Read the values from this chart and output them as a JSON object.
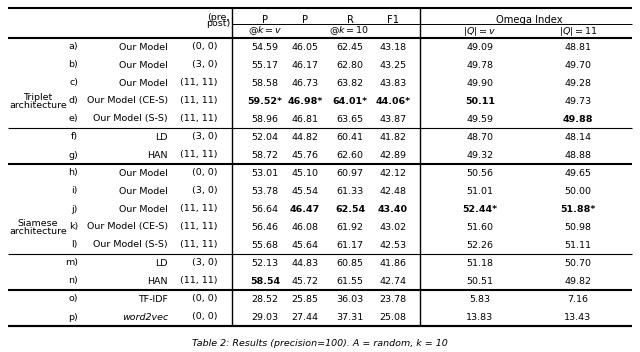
{
  "sections": [
    {
      "group_label": "Triplet\narchitecture",
      "rows": [
        {
          "id": "a)",
          "model": "Our Model",
          "pre_post": "(0, 0)",
          "p_v": "54.59",
          "p_10": "46.05",
          "r_10": "62.45",
          "f1_10": "43.18",
          "omega_v": "49.09",
          "omega_11": "48.81",
          "bold": [],
          "separator_before": false
        },
        {
          "id": "b)",
          "model": "Our Model",
          "pre_post": "(3, 0)",
          "p_v": "55.17",
          "p_10": "46.17",
          "r_10": "62.80",
          "f1_10": "43.25",
          "omega_v": "49.78",
          "omega_11": "49.70",
          "bold": [],
          "separator_before": false
        },
        {
          "id": "c)",
          "model": "Our Model",
          "pre_post": "(11, 11)",
          "p_v": "58.58",
          "p_10": "46.73",
          "r_10": "63.82",
          "f1_10": "43.83",
          "omega_v": "49.90",
          "omega_11": "49.28",
          "bold": [],
          "separator_before": false
        },
        {
          "id": "d)",
          "model": "Our Model (CE-S)",
          "pre_post": "(11, 11)",
          "p_v": "59.52*",
          "p_10": "46.98*",
          "r_10": "64.01*",
          "f1_10": "44.06*",
          "omega_v": "50.11",
          "omega_11": "49.73",
          "bold": [
            "p_v",
            "p_10",
            "r_10",
            "f1_10",
            "omega_v"
          ],
          "separator_before": false
        },
        {
          "id": "e)",
          "model": "Our Model (S-S)",
          "pre_post": "(11, 11)",
          "p_v": "58.96",
          "p_10": "46.81",
          "r_10": "63.65",
          "f1_10": "43.87",
          "omega_v": "49.59",
          "omega_11": "49.88",
          "bold": [
            "omega_11"
          ],
          "separator_before": false
        },
        {
          "id": "f)",
          "model": "LD",
          "pre_post": "(3, 0)",
          "p_v": "52.04",
          "p_10": "44.82",
          "r_10": "60.41",
          "f1_10": "41.82",
          "omega_v": "48.70",
          "omega_11": "48.14",
          "bold": [],
          "separator_before": true
        },
        {
          "id": "g)",
          "model": "HAN",
          "pre_post": "(11, 11)",
          "p_v": "58.72",
          "p_10": "45.76",
          "r_10": "62.60",
          "f1_10": "42.89",
          "omega_v": "49.32",
          "omega_11": "48.88",
          "bold": [],
          "separator_before": false
        }
      ]
    },
    {
      "group_label": "Siamese\narchitecture",
      "rows": [
        {
          "id": "h)",
          "model": "Our Model",
          "pre_post": "(0, 0)",
          "p_v": "53.01",
          "p_10": "45.10",
          "r_10": "60.97",
          "f1_10": "42.12",
          "omega_v": "50.56",
          "omega_11": "49.65",
          "bold": [],
          "separator_before": false
        },
        {
          "id": "i)",
          "model": "Our Model",
          "pre_post": "(3, 0)",
          "p_v": "53.78",
          "p_10": "45.54",
          "r_10": "61.33",
          "f1_10": "42.48",
          "omega_v": "51.01",
          "omega_11": "50.00",
          "bold": [],
          "separator_before": false
        },
        {
          "id": "j)",
          "model": "Our Model",
          "pre_post": "(11, 11)",
          "p_v": "56.64",
          "p_10": "46.47",
          "r_10": "62.54",
          "f1_10": "43.40",
          "omega_v": "52.44*",
          "omega_11": "51.88*",
          "bold": [
            "p_10",
            "r_10",
            "f1_10",
            "omega_v",
            "omega_11"
          ],
          "separator_before": false
        },
        {
          "id": "k)",
          "model": "Our Model (CE-S)",
          "pre_post": "(11, 11)",
          "p_v": "56.46",
          "p_10": "46.08",
          "r_10": "61.92",
          "f1_10": "43.02",
          "omega_v": "51.60",
          "omega_11": "50.98",
          "bold": [],
          "separator_before": false
        },
        {
          "id": "l)",
          "model": "Our Model (S-S)",
          "pre_post": "(11, 11)",
          "p_v": "55.68",
          "p_10": "45.64",
          "r_10": "61.17",
          "f1_10": "42.53",
          "omega_v": "52.26",
          "omega_11": "51.11",
          "bold": [],
          "separator_before": false
        },
        {
          "id": "m)",
          "model": "LD",
          "pre_post": "(3, 0)",
          "p_v": "52.13",
          "p_10": "44.83",
          "r_10": "60.85",
          "f1_10": "41.86",
          "omega_v": "51.18",
          "omega_11": "50.70",
          "bold": [],
          "separator_before": true
        },
        {
          "id": "n)",
          "model": "HAN",
          "pre_post": "(11, 11)",
          "p_v": "58.54",
          "p_10": "45.72",
          "r_10": "61.55",
          "f1_10": "42.74",
          "omega_v": "50.51",
          "omega_11": "49.82",
          "bold": [
            "p_v"
          ],
          "separator_before": false
        }
      ]
    },
    {
      "group_label": "",
      "rows": [
        {
          "id": "o)",
          "model": "TF-IDF",
          "pre_post": "(0, 0)",
          "p_v": "28.52",
          "p_10": "25.85",
          "r_10": "36.03",
          "f1_10": "23.78",
          "omega_v": "5.83",
          "omega_11": "7.16",
          "bold": [],
          "separator_before": false,
          "italic_model": false
        },
        {
          "id": "p)",
          "model": "word2vec",
          "pre_post": "(0, 0)",
          "p_v": "29.03",
          "p_10": "27.44",
          "r_10": "37.31",
          "f1_10": "25.08",
          "omega_v": "13.83",
          "omega_11": "13.43",
          "bold": [],
          "separator_before": false,
          "italic_model": true
        }
      ]
    }
  ],
  "caption": "Table 2: Results (precision=100). A = random, k = 10",
  "font_size": 6.8,
  "header_font_size": 7.2
}
